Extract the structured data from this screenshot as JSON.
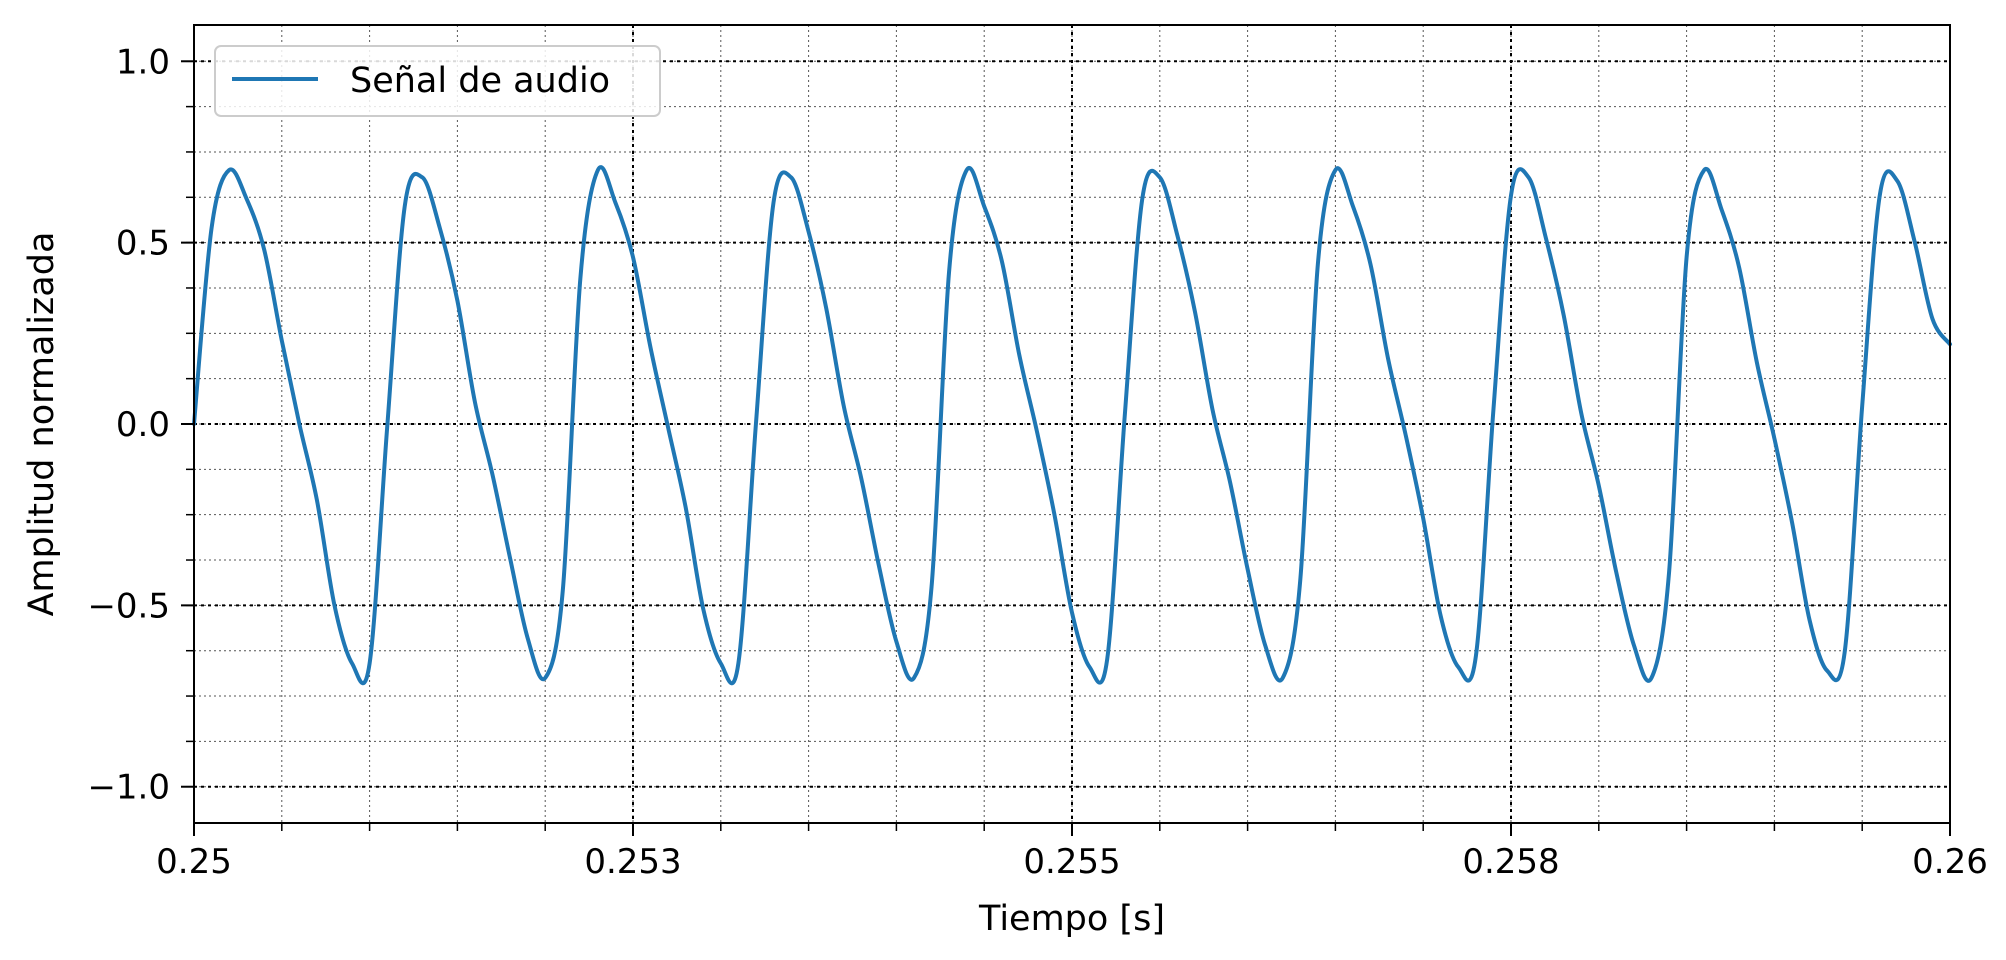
{
  "chart_data": {
    "type": "line",
    "title": "",
    "xlabel": "Tiempo [s]",
    "ylabel": "Amplitud normalizada",
    "xlim": [
      0.25,
      0.26
    ],
    "ylim": [
      -1.1,
      1.1
    ],
    "x_ticks": [
      0.25,
      0.2525,
      0.255,
      0.2575,
      0.26
    ],
    "x_tick_labels": [
      "0.25",
      "0.253",
      "0.255",
      "0.258",
      "0.26"
    ],
    "y_ticks": [
      -1.0,
      -0.5,
      0.0,
      0.5,
      1.0
    ],
    "y_tick_labels": [
      "−1.0",
      "−0.5",
      "0.0",
      "0.5",
      "1.0"
    ],
    "x_minor_step": 0.0005,
    "y_minor_step": 0.125,
    "grid": true,
    "legend_position": "upper-left",
    "line_color": "#1f77b4",
    "series": [
      {
        "name": "Señal de audio",
        "color": "#1f77b4",
        "x": [
          0.25,
          0.2501,
          0.2502,
          0.2503,
          0.2504,
          0.2505,
          0.2506,
          0.2507,
          0.2508,
          0.2509,
          0.251,
          0.2511,
          0.2512,
          0.2513,
          0.2514,
          0.2515,
          0.2516,
          0.2517,
          0.2518,
          0.2519,
          0.252,
          0.2521,
          0.2522,
          0.2523,
          0.2524,
          0.2525,
          0.2526,
          0.2527,
          0.2528,
          0.2529,
          0.253,
          0.2531,
          0.2532,
          0.2533,
          0.2534,
          0.2535,
          0.2536,
          0.2537,
          0.2538,
          0.2539,
          0.254,
          0.2541,
          0.2542,
          0.2543,
          0.2544,
          0.2545,
          0.2546,
          0.2547,
          0.2548,
          0.2549,
          0.255,
          0.2551,
          0.2552,
          0.2553,
          0.2554,
          0.2555,
          0.2556,
          0.2557,
          0.2558,
          0.2559,
          0.256,
          0.2561,
          0.2562,
          0.2563,
          0.2564,
          0.2565,
          0.2566,
          0.2567,
          0.2568,
          0.2569,
          0.257,
          0.2571,
          0.2572,
          0.2573,
          0.2574,
          0.2575,
          0.2576,
          0.2577,
          0.2578,
          0.2579,
          0.258,
          0.2581,
          0.2582,
          0.2583,
          0.2584,
          0.2585,
          0.2586,
          0.2587,
          0.2588,
          0.2589,
          0.259,
          0.2591,
          0.2592,
          0.2593,
          0.2594,
          0.2595,
          0.2596,
          0.2597,
          0.2598,
          0.2599,
          0.26
        ],
        "y": [
          0.0,
          0.54,
          0.7,
          0.62,
          0.48,
          0.23,
          0.0,
          -0.21,
          -0.5,
          -0.66,
          -0.66,
          -0.01,
          0.6,
          0.68,
          0.54,
          0.34,
          0.06,
          -0.14,
          -0.37,
          -0.59,
          -0.7,
          -0.46,
          0.4,
          0.7,
          0.61,
          0.46,
          0.21,
          -0.01,
          -0.23,
          -0.51,
          -0.66,
          -0.66,
          0.0,
          0.61,
          0.68,
          0.53,
          0.32,
          0.05,
          -0.15,
          -0.39,
          -0.6,
          -0.7,
          -0.45,
          0.42,
          0.7,
          0.6,
          0.45,
          0.19,
          -0.02,
          -0.25,
          -0.52,
          -0.67,
          -0.65,
          0.02,
          0.62,
          0.68,
          0.52,
          0.31,
          0.04,
          -0.16,
          -0.4,
          -0.61,
          -0.7,
          -0.43,
          0.44,
          0.7,
          0.6,
          0.44,
          0.18,
          -0.03,
          -0.26,
          -0.53,
          -0.67,
          -0.64,
          0.04,
          0.63,
          0.68,
          0.51,
          0.3,
          0.03,
          -0.17,
          -0.41,
          -0.61,
          -0.7,
          -0.41,
          0.46,
          0.7,
          0.59,
          0.43,
          0.17,
          -0.04,
          -0.27,
          -0.54,
          -0.68,
          -0.63,
          0.05,
          0.63,
          0.67,
          0.5,
          0.29,
          0.22
        ]
      }
    ]
  }
}
